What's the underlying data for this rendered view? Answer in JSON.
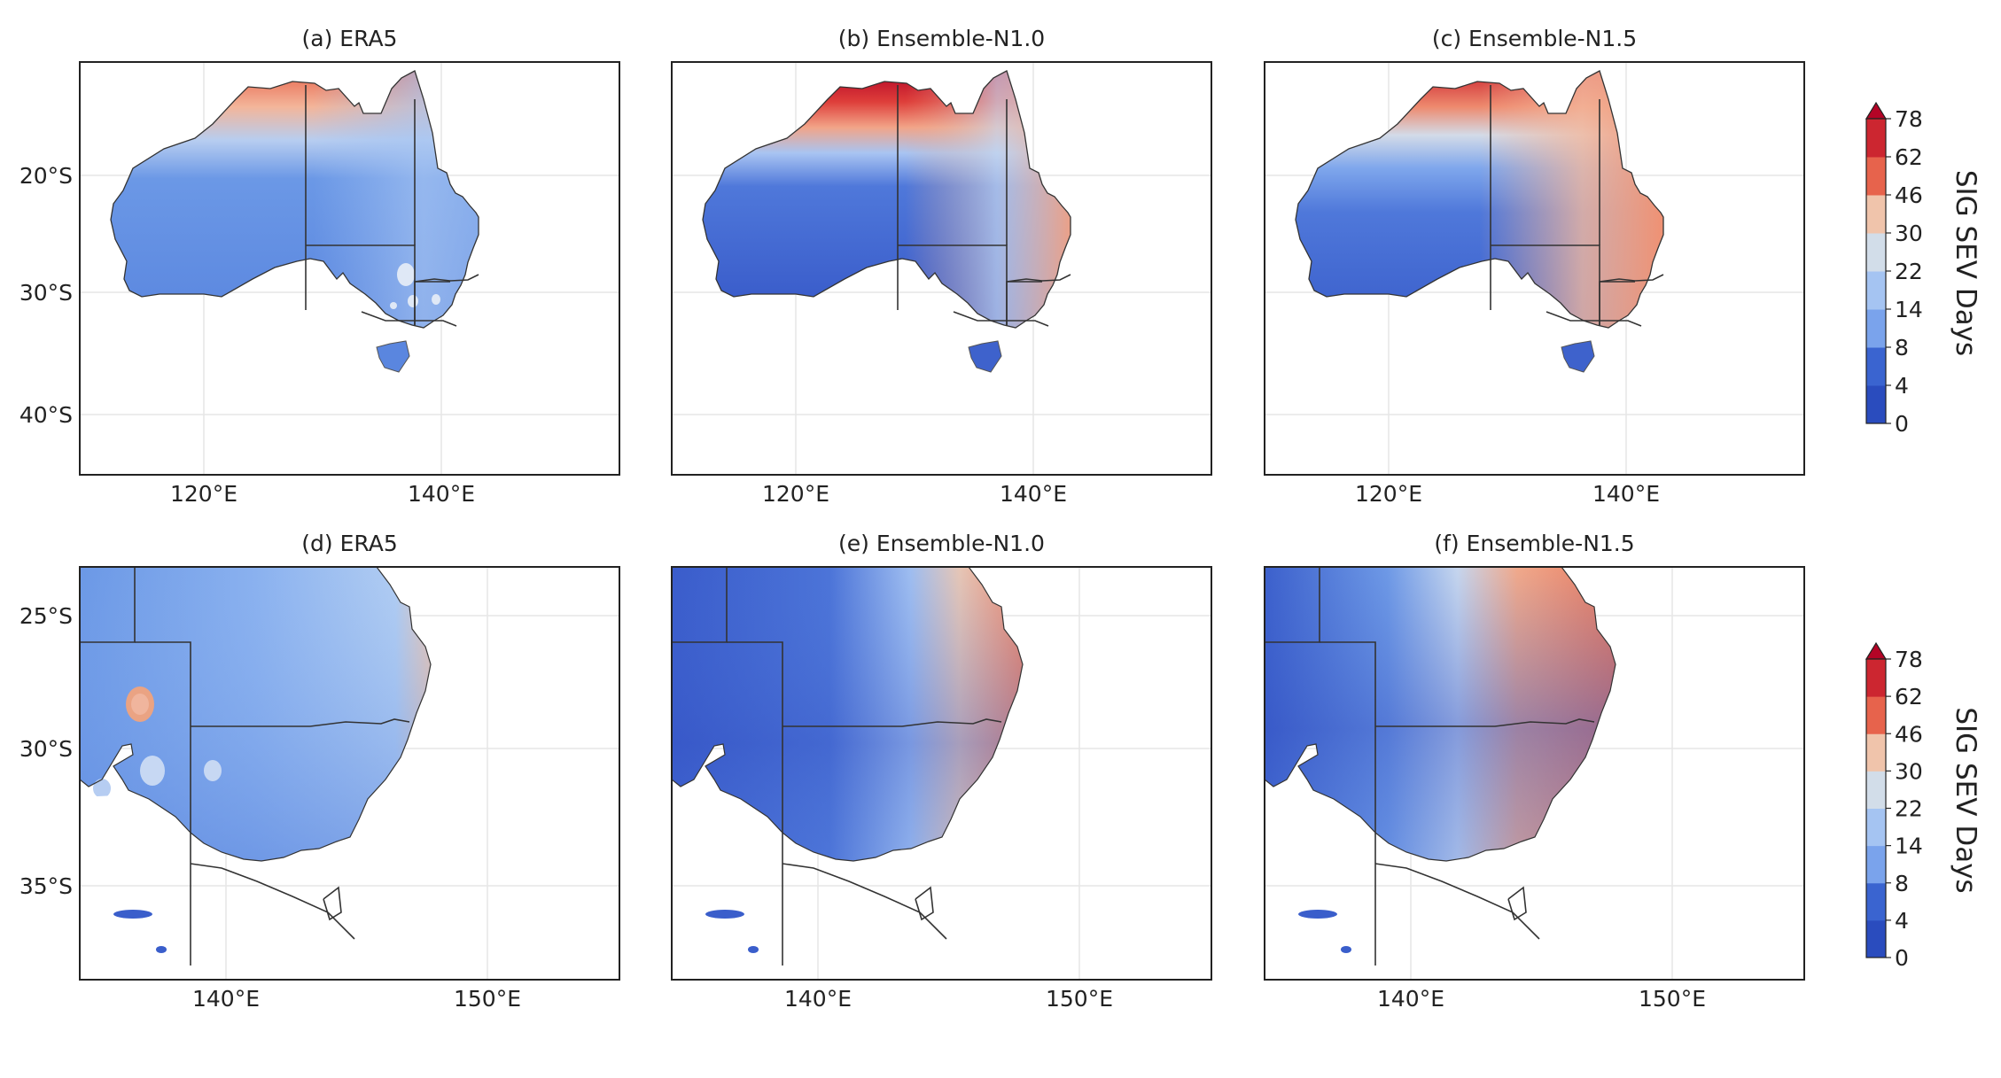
{
  "figure": {
    "panels": [
      {
        "id": "a",
        "title": "(a) ERA5",
        "region": "australia",
        "model": "era5",
        "y_ticks": [
          "20°S",
          "30°S",
          "40°S"
        ],
        "x_ticks": [
          "120°E",
          "140°E"
        ]
      },
      {
        "id": "b",
        "title": "(b) Ensemble-N1.0",
        "region": "australia",
        "model": "n10",
        "y_ticks": [],
        "x_ticks": [
          "120°E",
          "140°E"
        ]
      },
      {
        "id": "c",
        "title": "(c) Ensemble-N1.5",
        "region": "australia",
        "model": "n15",
        "y_ticks": [],
        "x_ticks": [
          "120°E",
          "140°E"
        ]
      },
      {
        "id": "d",
        "title": "(d) ERA5",
        "region": "southeast",
        "model": "era5",
        "y_ticks": [
          "25°S",
          "30°S",
          "35°S"
        ],
        "x_ticks": [
          "140°E",
          "150°E"
        ]
      },
      {
        "id": "e",
        "title": "(e) Ensemble-N1.0",
        "region": "southeast",
        "model": "n10",
        "y_ticks": [],
        "x_ticks": [
          "140°E",
          "150°E"
        ]
      },
      {
        "id": "f",
        "title": "(f) Ensemble-N1.5",
        "region": "southeast",
        "model": "n15",
        "y_ticks": [],
        "x_ticks": [
          "140°E",
          "150°E"
        ]
      }
    ],
    "colorbar": {
      "label": "SIG SEV Days",
      "levels": [
        "0",
        "4",
        "8",
        "14",
        "22",
        "30",
        "46",
        "62",
        "78"
      ],
      "colors": [
        "#2a4cbe",
        "#3a64d0",
        "#5682e0",
        "#7aa3ec",
        "#a5c4f2",
        "#d2dde9",
        "#f0c4ab",
        "#f39b7c",
        "#e7634c",
        "#cc2630",
        "#b40426"
      ]
    }
  }
}
